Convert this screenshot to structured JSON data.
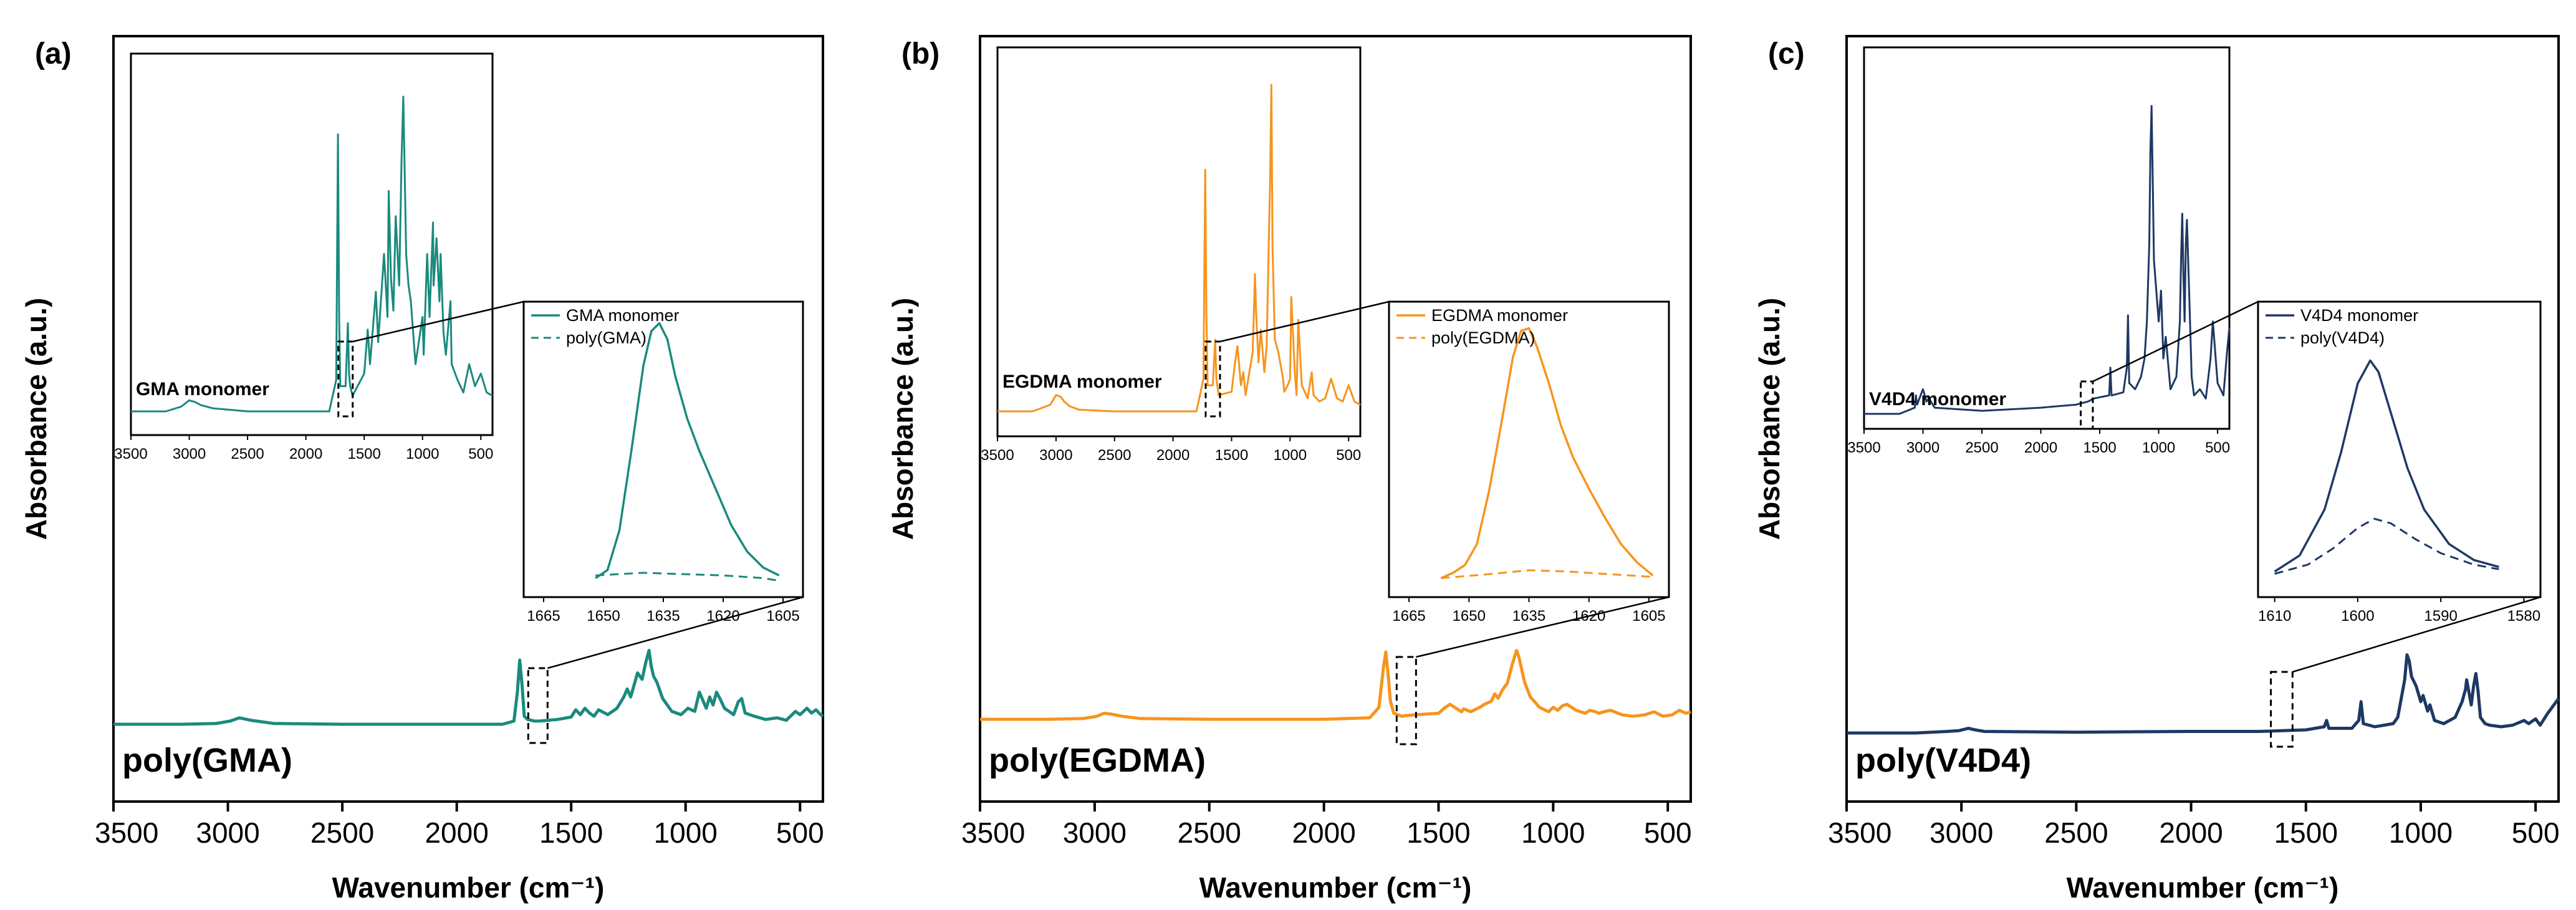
{
  "chart_data": [
    {
      "type": "line",
      "panel_label": "(a)",
      "color": "#1a8a7e",
      "xlabel": "Wavenumber (cm⁻¹)",
      "ylabel": "Absorbance (a.u.)",
      "xlim": [
        3500,
        400
      ],
      "xticks": [
        3500,
        3000,
        2500,
        2000,
        1500,
        1000,
        500
      ],
      "main_series_label": "poly(GMA)",
      "main_x": [
        3500,
        3200,
        3050,
        2990,
        2950,
        2900,
        2850,
        2800,
        2500,
        2000,
        1800,
        1750,
        1735,
        1725,
        1715,
        1705,
        1690,
        1660,
        1640,
        1600,
        1560,
        1500,
        1480,
        1460,
        1440,
        1420,
        1400,
        1380,
        1340,
        1300,
        1270,
        1255,
        1240,
        1210,
        1190,
        1175,
        1160,
        1150,
        1140,
        1125,
        1100,
        1060,
        1020,
        990,
        960,
        940,
        925,
        910,
        895,
        880,
        865,
        850,
        830,
        810,
        790,
        770,
        755,
        740,
        700,
        650,
        600,
        560,
        520,
        500,
        470,
        450,
        430,
        410,
        400
      ],
      "main_y": [
        0.0,
        0.0,
        0.005,
        0.02,
        0.04,
        0.025,
        0.015,
        0.005,
        0.0,
        0.0,
        0.0,
        0.02,
        0.2,
        0.4,
        0.25,
        0.05,
        0.03,
        0.02,
        0.02,
        0.025,
        0.03,
        0.045,
        0.09,
        0.06,
        0.1,
        0.07,
        0.05,
        0.09,
        0.06,
        0.1,
        0.17,
        0.22,
        0.17,
        0.32,
        0.28,
        0.38,
        0.46,
        0.36,
        0.3,
        0.26,
        0.16,
        0.08,
        0.06,
        0.1,
        0.08,
        0.2,
        0.15,
        0.1,
        0.17,
        0.12,
        0.2,
        0.16,
        0.1,
        0.08,
        0.06,
        0.14,
        0.16,
        0.07,
        0.05,
        0.03,
        0.04,
        0.025,
        0.08,
        0.06,
        0.1,
        0.07,
        0.09,
        0.06,
        0.05
      ],
      "inset_overview": {
        "title": "GMA monomer",
        "xlim": [
          3500,
          400
        ],
        "xticks": [
          3500,
          3000,
          2500,
          2000,
          1500,
          1000,
          500
        ],
        "x": [
          3500,
          3200,
          3070,
          3000,
          2950,
          2900,
          2800,
          2500,
          2000,
          1800,
          1740,
          1725,
          1715,
          1705,
          1660,
          1640,
          1630,
          1620,
          1600,
          1500,
          1470,
          1450,
          1400,
          1380,
          1330,
          1300,
          1290,
          1270,
          1250,
          1230,
          1200,
          1180,
          1165,
          1160,
          1150,
          1140,
          1120,
          1100,
          1060,
          1000,
          990,
          960,
          940,
          910,
          905,
          880,
          855,
          845,
          820,
          800,
          760,
          750,
          700,
          650,
          600,
          550,
          500,
          450,
          400
        ],
        "y": [
          0.0,
          0.0,
          0.015,
          0.035,
          0.03,
          0.02,
          0.01,
          0.0,
          0.0,
          0.0,
          0.1,
          0.88,
          0.3,
          0.08,
          0.08,
          0.28,
          0.12,
          0.08,
          0.05,
          0.12,
          0.26,
          0.15,
          0.38,
          0.22,
          0.5,
          0.3,
          0.7,
          0.42,
          0.32,
          0.62,
          0.4,
          0.8,
          1.0,
          0.9,
          0.7,
          0.5,
          0.4,
          0.35,
          0.15,
          0.3,
          0.18,
          0.5,
          0.3,
          0.6,
          0.4,
          0.55,
          0.35,
          0.5,
          0.25,
          0.18,
          0.35,
          0.15,
          0.1,
          0.06,
          0.15,
          0.08,
          0.12,
          0.06,
          0.05
        ]
      },
      "inset_zoom": {
        "xlim": [
          1670,
          1600
        ],
        "xticks": [
          1665,
          1650,
          1635,
          1620,
          1605
        ],
        "legend": [
          "GMA monomer",
          "poly(GMA)"
        ],
        "monomer_x": [
          1652,
          1649,
          1646,
          1643,
          1640,
          1638,
          1636,
          1634,
          1632,
          1629,
          1626,
          1622,
          1618,
          1614,
          1610,
          1606
        ],
        "monomer_y": [
          0.02,
          0.05,
          0.2,
          0.5,
          0.82,
          0.95,
          0.98,
          0.92,
          0.78,
          0.62,
          0.5,
          0.36,
          0.22,
          0.12,
          0.06,
          0.03
        ],
        "poly_x": [
          1652,
          1640,
          1630,
          1620,
          1610,
          1606
        ],
        "poly_y": [
          0.03,
          0.04,
          0.035,
          0.03,
          0.02,
          0.01
        ]
      }
    },
    {
      "type": "line",
      "panel_label": "(b)",
      "color": "#f7941d",
      "xlabel": "Wavenumber (cm⁻¹)",
      "ylabel": "Absorbance (a.u.)",
      "xlim": [
        3500,
        400
      ],
      "xticks": [
        3500,
        3000,
        2500,
        2000,
        1500,
        1000,
        500
      ],
      "main_series_label": "poly(EGDMA)",
      "main_x": [
        3500,
        3200,
        3050,
        2990,
        2960,
        2930,
        2880,
        2800,
        2500,
        2000,
        1800,
        1760,
        1740,
        1730,
        1720,
        1710,
        1695,
        1660,
        1640,
        1600,
        1500,
        1470,
        1450,
        1420,
        1400,
        1390,
        1360,
        1320,
        1300,
        1270,
        1255,
        1240,
        1220,
        1200,
        1180,
        1160,
        1150,
        1140,
        1125,
        1100,
        1060,
        1020,
        1000,
        980,
        960,
        940,
        900,
        860,
        840,
        815,
        800,
        780,
        750,
        700,
        650,
        600,
        560,
        520,
        480,
        450,
        420,
        400
      ],
      "main_y": [
        0.0,
        0.0,
        0.005,
        0.02,
        0.04,
        0.035,
        0.02,
        0.005,
        0.0,
        0.0,
        0.01,
        0.08,
        0.35,
        0.45,
        0.3,
        0.12,
        0.04,
        0.02,
        0.025,
        0.03,
        0.04,
        0.08,
        0.1,
        0.07,
        0.05,
        0.07,
        0.05,
        0.08,
        0.1,
        0.12,
        0.17,
        0.14,
        0.2,
        0.24,
        0.36,
        0.46,
        0.42,
        0.35,
        0.25,
        0.15,
        0.08,
        0.05,
        0.08,
        0.06,
        0.09,
        0.1,
        0.06,
        0.04,
        0.06,
        0.05,
        0.04,
        0.05,
        0.06,
        0.03,
        0.02,
        0.03,
        0.05,
        0.02,
        0.03,
        0.06,
        0.04,
        0.05
      ],
      "inset_overview": {
        "title": "EGDMA monomer",
        "xlim": [
          3500,
          400
        ],
        "xticks": [
          3500,
          3000,
          2500,
          2000,
          1500,
          1000,
          500
        ],
        "x": [
          3500,
          3200,
          3050,
          3000,
          2960,
          2930,
          2880,
          2800,
          2500,
          2000,
          1800,
          1740,
          1725,
          1715,
          1705,
          1660,
          1640,
          1630,
          1610,
          1500,
          1470,
          1450,
          1420,
          1400,
          1380,
          1320,
          1300,
          1290,
          1270,
          1250,
          1220,
          1200,
          1170,
          1160,
          1150,
          1130,
          1100,
          1060,
          1050,
          1020,
          1000,
          990,
          960,
          945,
          930,
          900,
          850,
          815,
          800,
          750,
          700,
          650,
          600,
          550,
          500,
          450,
          400
        ],
        "y": [
          0.0,
          0.0,
          0.02,
          0.05,
          0.045,
          0.03,
          0.015,
          0.005,
          0.0,
          0.0,
          0.0,
          0.1,
          0.74,
          0.3,
          0.08,
          0.08,
          0.22,
          0.1,
          0.05,
          0.06,
          0.15,
          0.2,
          0.08,
          0.12,
          0.05,
          0.18,
          0.42,
          0.3,
          0.15,
          0.25,
          0.12,
          0.2,
          0.72,
          1.0,
          0.5,
          0.22,
          0.18,
          0.1,
          0.06,
          0.08,
          0.1,
          0.35,
          0.12,
          0.05,
          0.28,
          0.08,
          0.04,
          0.12,
          0.05,
          0.03,
          0.04,
          0.1,
          0.04,
          0.03,
          0.08,
          0.03,
          0.02
        ]
      },
      "inset_zoom": {
        "xlim": [
          1670,
          1600
        ],
        "xticks": [
          1665,
          1650,
          1635,
          1620,
          1605
        ],
        "legend": [
          "EGDMA monomer",
          "poly(EGDMA)"
        ],
        "monomer_x": [
          1657,
          1654,
          1651,
          1648,
          1645,
          1642,
          1639,
          1637,
          1635,
          1633,
          1630,
          1627,
          1624,
          1620,
          1616,
          1612,
          1608,
          1604
        ],
        "monomer_y": [
          0.02,
          0.04,
          0.07,
          0.15,
          0.35,
          0.6,
          0.86,
          0.96,
          0.97,
          0.9,
          0.76,
          0.6,
          0.48,
          0.36,
          0.25,
          0.15,
          0.08,
          0.03
        ],
        "poly_x": [
          1657,
          1645,
          1635,
          1625,
          1615,
          1604
        ],
        "poly_y": [
          0.02,
          0.035,
          0.05,
          0.045,
          0.035,
          0.025
        ]
      }
    },
    {
      "type": "line",
      "panel_label": "(c)",
      "color": "#1f3864",
      "xlabel": "Wavenumber (cm⁻¹)",
      "ylabel": "Absorbance (a.u.)",
      "xlim": [
        3500,
        400
      ],
      "xticks": [
        3500,
        3000,
        2500,
        2000,
        1500,
        1000,
        500
      ],
      "main_series_label": "poly(V4D4)",
      "main_x": [
        3500,
        3200,
        3060,
        3010,
        2970,
        2940,
        2900,
        2500,
        2000,
        1700,
        1600,
        1500,
        1420,
        1410,
        1400,
        1300,
        1270,
        1260,
        1250,
        1200,
        1120,
        1100,
        1090,
        1070,
        1060,
        1050,
        1040,
        1020,
        1000,
        990,
        970,
        960,
        940,
        900,
        850,
        820,
        805,
        800,
        790,
        780,
        770,
        760,
        750,
        740,
        720,
        700,
        650,
        600,
        550,
        530,
        500,
        480,
        450,
        420,
        400
      ],
      "main_y": [
        0.0,
        0.0,
        0.01,
        0.015,
        0.03,
        0.02,
        0.01,
        0.005,
        0.01,
        0.01,
        0.015,
        0.02,
        0.04,
        0.08,
        0.03,
        0.03,
        0.08,
        0.2,
        0.06,
        0.04,
        0.06,
        0.1,
        0.18,
        0.34,
        0.5,
        0.46,
        0.36,
        0.3,
        0.2,
        0.24,
        0.14,
        0.18,
        0.08,
        0.06,
        0.1,
        0.2,
        0.28,
        0.34,
        0.26,
        0.18,
        0.3,
        0.38,
        0.26,
        0.1,
        0.06,
        0.05,
        0.04,
        0.05,
        0.08,
        0.06,
        0.09,
        0.05,
        0.12,
        0.18,
        0.22
      ],
      "inset_overview": {
        "title": "V4D4 monomer",
        "xlim": [
          3500,
          400
        ],
        "xticks": [
          3500,
          3000,
          2500,
          2000,
          1500,
          1000,
          500
        ],
        "x": [
          3500,
          3200,
          3070,
          3060,
          3050,
          3020,
          3000,
          2970,
          2950,
          2900,
          2500,
          2000,
          1700,
          1600,
          1550,
          1420,
          1410,
          1400,
          1300,
          1270,
          1260,
          1250,
          1200,
          1150,
          1120,
          1100,
          1080,
          1070,
          1060,
          1050,
          1040,
          1020,
          1000,
          980,
          960,
          940,
          900,
          850,
          820,
          810,
          800,
          790,
          780,
          770,
          760,
          740,
          720,
          700,
          650,
          600,
          560,
          540,
          520,
          500,
          450,
          420,
          400
        ],
        "y": [
          0.0,
          0.0,
          0.02,
          0.06,
          0.03,
          0.06,
          0.08,
          0.04,
          0.05,
          0.02,
          0.01,
          0.02,
          0.03,
          0.04,
          0.05,
          0.06,
          0.15,
          0.06,
          0.07,
          0.15,
          0.32,
          0.1,
          0.08,
          0.12,
          0.18,
          0.3,
          0.55,
          0.85,
          1.0,
          0.75,
          0.5,
          0.4,
          0.3,
          0.4,
          0.18,
          0.25,
          0.08,
          0.12,
          0.3,
          0.5,
          0.65,
          0.45,
          0.3,
          0.55,
          0.63,
          0.38,
          0.12,
          0.06,
          0.08,
          0.05,
          0.18,
          0.3,
          0.2,
          0.1,
          0.06,
          0.2,
          0.28
        ]
      },
      "inset_zoom": {
        "xlim": [
          1612,
          1578
        ],
        "xticks": [
          1610,
          1600,
          1590,
          1580
        ],
        "legend": [
          "V4D4 monomer",
          "poly(V4D4)"
        ],
        "monomer_x": [
          1610,
          1607,
          1604,
          1602,
          1600,
          1598.5,
          1597.5,
          1596,
          1594,
          1592,
          1589,
          1586,
          1583
        ],
        "monomer_y": [
          0.03,
          0.1,
          0.3,
          0.55,
          0.85,
          0.95,
          0.9,
          0.72,
          0.48,
          0.3,
          0.15,
          0.08,
          0.05
        ],
        "poly_x": [
          1610,
          1606,
          1603,
          1600,
          1598,
          1596,
          1593,
          1590,
          1586,
          1583
        ],
        "poly_y": [
          0.02,
          0.06,
          0.13,
          0.22,
          0.26,
          0.24,
          0.17,
          0.11,
          0.06,
          0.04
        ]
      }
    }
  ]
}
